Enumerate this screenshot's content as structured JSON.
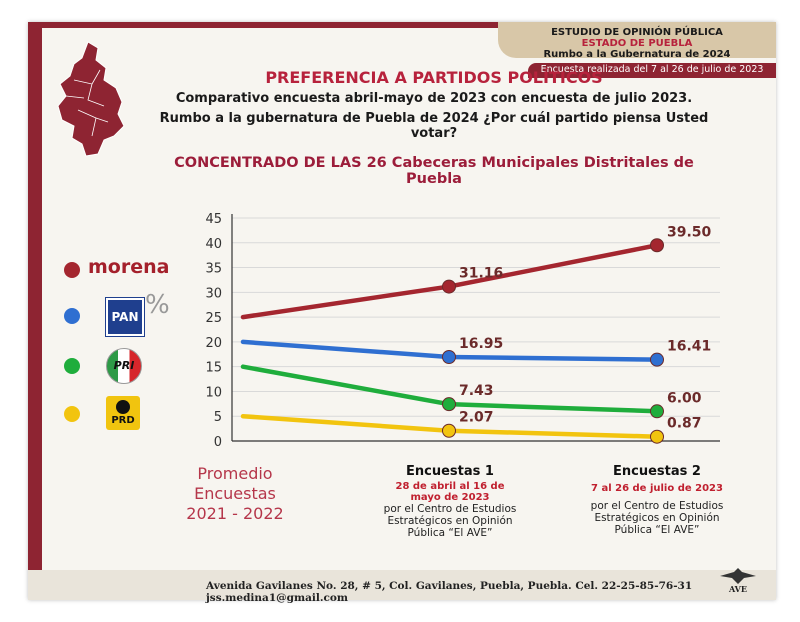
{
  "header": {
    "line1": "ESTUDIO DE OPINIÓN PÚBLICA",
    "line2": "ESTADO DE PUEBLA",
    "line3": "Rumbo a la Gubernatura de 2024",
    "survey_date": "Encuesta realizada del 7 al 26 de julio de 2023"
  },
  "titles": {
    "main": "PREFERENCIA A PARTIDOS POLÍTICOS",
    "sub1": "Comparativo encuesta abril-mayo de 2023 con encuesta de julio 2023.",
    "sub2": "Rumbo a la gubernatura de Puebla de 2024 ¿Por cuál partido piensa Usted votar?",
    "concentrado": "CONCENTRADO DE LAS 26 Cabeceras Municipales Distritales de Puebla"
  },
  "legend": {
    "morena_text": "morena",
    "pan_text": "PAN",
    "pri_text_p": "P",
    "pri_text_r": "R",
    "pri_text_i": "I",
    "prd_text": "PRD"
  },
  "y_unit": "%",
  "x_labels": {
    "promedio_1": "Promedio",
    "promedio_2": "Encuestas",
    "promedio_3": "2021 - 2022",
    "enc1_name": "Encuestas 1",
    "enc1_date1": "28 de abril al 16 de",
    "enc1_date2": "mayo de 2023",
    "enc1_org1": "por el Centro de Estudios",
    "enc1_org2": "Estratégicos en Opinión",
    "enc1_org3": "Pública “El AVE”",
    "enc2_name": "Encuestas 2",
    "enc2_date": "7 al 26 de julio de 2023",
    "enc2_org1": "por el Centro de Estudios",
    "enc2_org2": "Estratégicos en Opinión",
    "enc2_org3": "Pública “El AVE”"
  },
  "footer": {
    "address": "Avenida Gavilanes No. 28, # 5, Col. Gavilanes, Puebla, Puebla. Cel. 22-25-85-76-31  jss.medina1@gmail.com",
    "seal_text": "AVE"
  },
  "colors": {
    "morena": "#a4262f",
    "pan": "#2f6fd1",
    "pri": "#1fad3c",
    "prd": "#f2c40f"
  },
  "chart_data": {
    "type": "line",
    "ylim": [
      0,
      45
    ],
    "yticks": [
      0,
      5,
      10,
      15,
      20,
      25,
      30,
      35,
      40,
      45
    ],
    "grid": true,
    "series": [
      {
        "key": "morena",
        "color": "#a4262f",
        "values": [
          25,
          31.16,
          39.5
        ],
        "labels": [
          "",
          "31.16",
          "39.50"
        ]
      },
      {
        "key": "pan",
        "color": "#2f6fd1",
        "values": [
          20,
          16.95,
          16.41
        ],
        "labels": [
          "",
          "16.95",
          "16.41"
        ]
      },
      {
        "key": "pri",
        "color": "#1fad3c",
        "values": [
          15,
          7.43,
          6.0
        ],
        "labels": [
          "",
          "7.43",
          "6.00"
        ]
      },
      {
        "key": "prd",
        "color": "#f2c40f",
        "values": [
          5,
          2.07,
          0.87
        ],
        "labels": [
          "",
          "2.07",
          "0.87"
        ]
      }
    ]
  }
}
